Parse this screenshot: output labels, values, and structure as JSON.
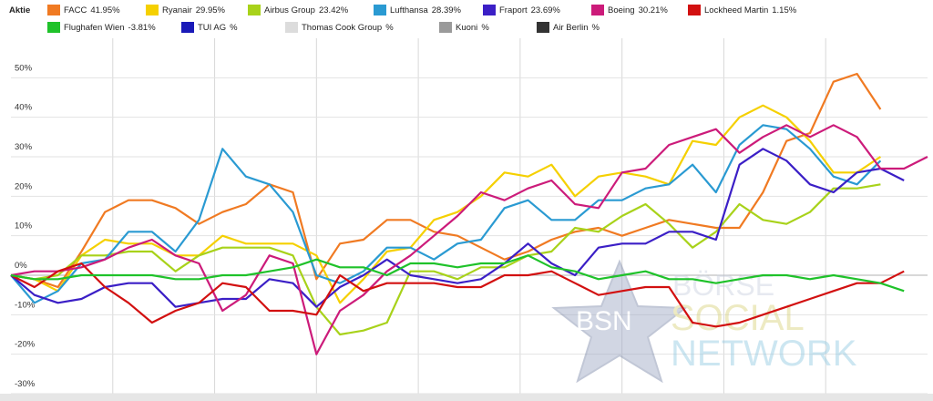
{
  "legend": {
    "title": "Aktie"
  },
  "chart_data": {
    "type": "line",
    "ylim": [
      -30,
      60
    ],
    "yticks": [
      -30,
      -20,
      -10,
      0,
      10,
      20,
      30,
      40,
      50
    ],
    "ytick_labels": [
      "-30%",
      "-20%",
      "-10%",
      "0%",
      "10%",
      "20%",
      "30%",
      "40%",
      "50%"
    ],
    "grid": true,
    "legend_position": "top",
    "series": [
      {
        "name": "FACC",
        "value_label": "41.95%",
        "color": "#f07a22",
        "values": [
          0,
          -1,
          -3,
          6,
          16,
          19,
          19,
          17,
          13,
          16,
          18,
          23,
          21,
          -1,
          8,
          9,
          14,
          14,
          11,
          10,
          7,
          4,
          6,
          9,
          11,
          12,
          10,
          12,
          14,
          13,
          12,
          12,
          21,
          34,
          36,
          49,
          51,
          42
        ]
      },
      {
        "name": "Ryanair",
        "value_label": "29.95%",
        "color": "#f5d000",
        "values": [
          0,
          -1,
          -4,
          5,
          9,
          8,
          8,
          5,
          5,
          10,
          8,
          8,
          8,
          5,
          -7,
          -1,
          6,
          7,
          14,
          16,
          20,
          26,
          25,
          28,
          20,
          25,
          26,
          25,
          23,
          34,
          33,
          40,
          43,
          40,
          34,
          26,
          26,
          30
        ]
      },
      {
        "name": "Airbus Group",
        "value_label": "23.42%",
        "color": "#a8d21a",
        "values": [
          0,
          -1,
          0,
          5,
          5,
          6,
          6,
          1,
          5,
          7,
          7,
          7,
          5,
          -8,
          -15,
          -14,
          -12,
          1,
          1,
          -1,
          2,
          2,
          5,
          6,
          12,
          11,
          15,
          18,
          13,
          7,
          11,
          18,
          14,
          13,
          16,
          22,
          22,
          23
        ]
      },
      {
        "name": "Lufthansa",
        "value_label": "28.39%",
        "color": "#2a9ad2",
        "values": [
          0,
          -7,
          -4,
          3,
          4,
          11,
          11,
          6,
          14,
          32,
          25,
          23,
          16,
          0,
          -2,
          1,
          7,
          7,
          4,
          8,
          9,
          17,
          19,
          14,
          14,
          19,
          19,
          22,
          23,
          28,
          21,
          33,
          38,
          37,
          32,
          25,
          23,
          29
        ]
      },
      {
        "name": "Fraport",
        "value_label": "23.69%",
        "color": "#3b1fc6",
        "values": [
          0,
          -5,
          -7,
          -6,
          -3,
          -2,
          -2,
          -8,
          -7,
          -6,
          -6,
          -1,
          -2,
          -8,
          -3,
          0,
          4,
          0,
          -1,
          -2,
          -1,
          3,
          8,
          3,
          0,
          7,
          8,
          8,
          11,
          11,
          9,
          28,
          32,
          29,
          23,
          21,
          26,
          27,
          24
        ]
      },
      {
        "name": "Boeing",
        "value_label": "30.21%",
        "color": "#cc1b7a",
        "values": [
          0,
          1,
          1,
          2,
          4,
          7,
          9,
          5,
          3,
          -9,
          -5,
          5,
          3,
          -20,
          -9,
          -5,
          1,
          5,
          10,
          15,
          21,
          19,
          22,
          24,
          18,
          17,
          26,
          27,
          33,
          35,
          37,
          31,
          35,
          38,
          35,
          38,
          35,
          27,
          27,
          30
        ]
      },
      {
        "name": "Lockheed Martin",
        "value_label": "1.15%",
        "color": "#d21010",
        "values": [
          0,
          -3,
          1,
          3,
          -3,
          -7,
          -12,
          -9,
          -7,
          -2,
          -3,
          -9,
          -9,
          -10,
          0,
          -4,
          -2,
          -2,
          -2,
          -3,
          -3,
          0,
          0,
          1,
          -2,
          -5,
          -4,
          -3,
          -3,
          -12,
          -13,
          -12,
          -10,
          -8,
          -6,
          -4,
          -2,
          -2,
          1
        ]
      },
      {
        "name": "Flughafen Wien",
        "value_label": "-3.81%",
        "color": "#1fc22a",
        "values": [
          0,
          -1,
          -1,
          0,
          0,
          0,
          0,
          -1,
          -1,
          0,
          0,
          1,
          2,
          4,
          2,
          2,
          0,
          3,
          3,
          2,
          3,
          3,
          5,
          2,
          1,
          -1,
          0,
          1,
          -1,
          -1,
          -2,
          -1,
          0,
          0,
          -1,
          0,
          -1,
          -2,
          -4
        ]
      },
      {
        "name": "TUI AG",
        "value_label": "%",
        "color": "#1a1ab8",
        "values": []
      },
      {
        "name": "Thomas Cook Group",
        "value_label": "%",
        "color": "#dcdcdc",
        "values": []
      },
      {
        "name": "Kuoni",
        "value_label": "%",
        "color": "#9a9a9a",
        "values": []
      },
      {
        "name": "Air Berlin",
        "value_label": "%",
        "color": "#333333",
        "values": []
      }
    ]
  },
  "watermark": {
    "badge": "BSN",
    "line1": "BÖRSE",
    "line2": "SOCIAL",
    "line3": "NETWORK"
  }
}
